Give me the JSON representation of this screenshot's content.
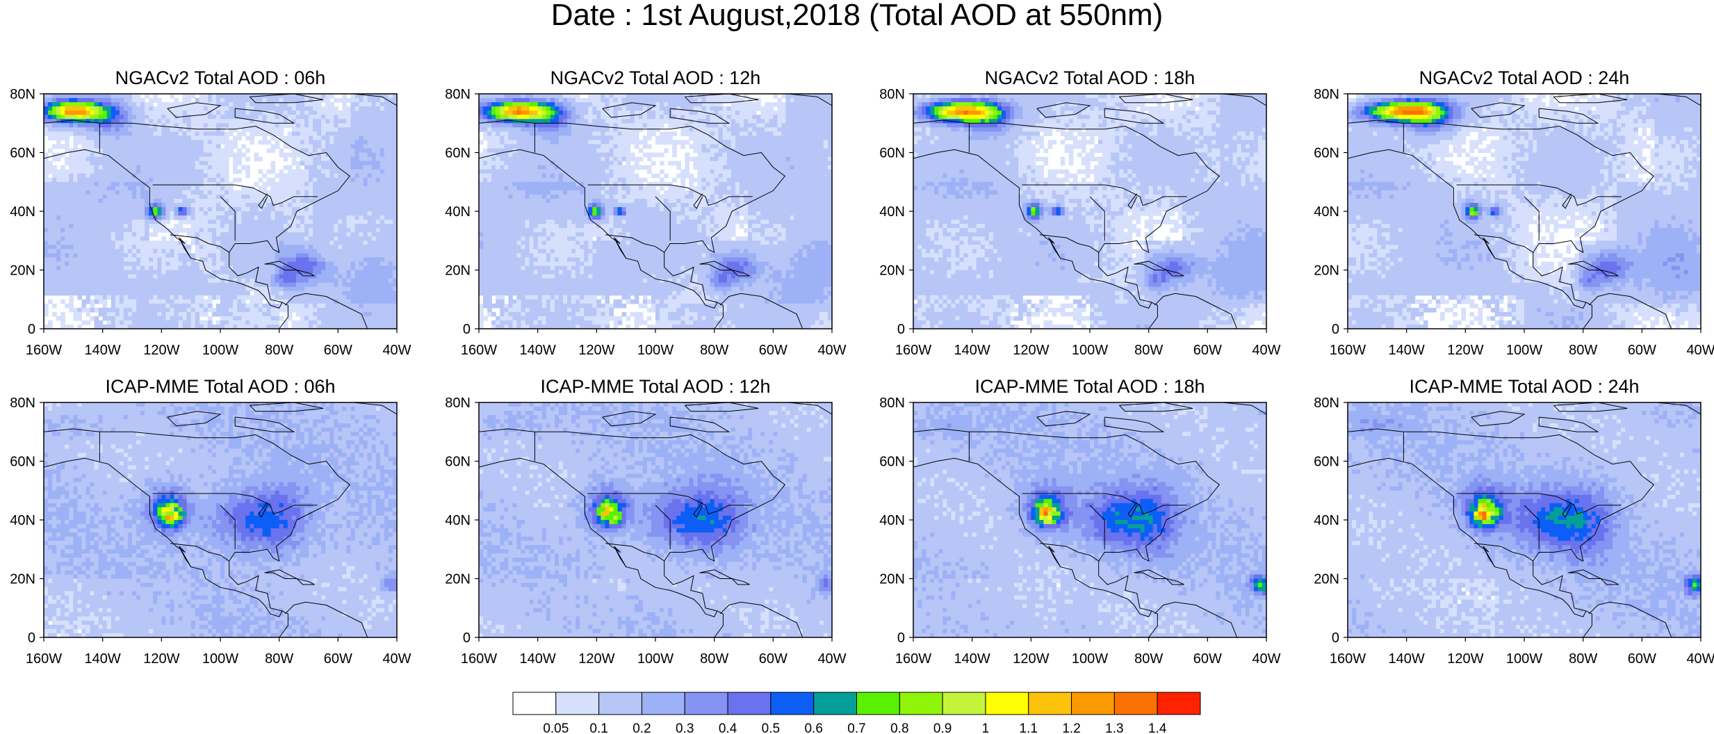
{
  "title": "Date : 1st August,2018 (Total AOD at 550nm)",
  "panels": [
    {
      "title": "NGACv2 Total AOD : 06h",
      "model": "NGACv2",
      "hour": "06h"
    },
    {
      "title": "NGACv2 Total AOD : 12h",
      "model": "NGACv2",
      "hour": "12h"
    },
    {
      "title": "NGACv2 Total AOD : 18h",
      "model": "NGACv2",
      "hour": "18h"
    },
    {
      "title": "NGACv2 Total AOD : 24h",
      "model": "NGACv2",
      "hour": "24h"
    },
    {
      "title": "ICAP-MME Total AOD : 06h",
      "model": "ICAP-MME",
      "hour": "06h"
    },
    {
      "title": "ICAP-MME Total AOD : 12h",
      "model": "ICAP-MME",
      "hour": "12h"
    },
    {
      "title": "ICAP-MME Total AOD : 18h",
      "model": "ICAP-MME",
      "hour": "18h"
    },
    {
      "title": "ICAP-MME Total AOD : 24h",
      "model": "ICAP-MME",
      "hour": "24h"
    }
  ],
  "axes": {
    "lon_ticks": [
      "160W",
      "140W",
      "120W",
      "100W",
      "80W",
      "60W",
      "40W"
    ],
    "lat_ticks": [
      "0",
      "20N",
      "40N",
      "60N",
      "80N"
    ],
    "lon_range": [
      -160,
      -40
    ],
    "lat_range": [
      0,
      80
    ]
  },
  "colorbar": {
    "labels": [
      "0.05",
      "0.1",
      "0.2",
      "0.3",
      "0.4",
      "0.5",
      "0.6",
      "0.7",
      "0.8",
      "0.9",
      "1",
      "1.1",
      "1.2",
      "1.3",
      "1.4"
    ],
    "colors": [
      "#ffffff",
      "#d6e0fc",
      "#b7c6f7",
      "#9db1f6",
      "#8593f2",
      "#6a72ee",
      "#0c5ef7",
      "#059f99",
      "#58f200",
      "#90f408",
      "#c3f43c",
      "#ffff00",
      "#fcc30a",
      "#fc9900",
      "#fc7100",
      "#ff2200"
    ]
  },
  "features": [
    {
      "name": "smoke-plume-alaska",
      "lon": -152,
      "lat": 73,
      "level": "high (up to 1.4)"
    },
    {
      "name": "smoke-california",
      "lon": -122,
      "lat": 40,
      "level": "0.7-1.2"
    },
    {
      "name": "dust-caribbean",
      "lon": -72,
      "lat": 20,
      "level": "0.4-0.7"
    }
  ]
}
